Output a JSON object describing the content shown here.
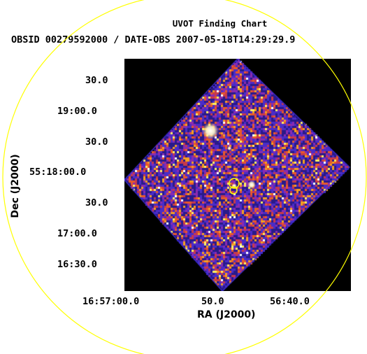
{
  "chart": {
    "title": "UVOT Finding Chart",
    "subtitle": "OBSID 00279592000 / DATE-OBS 2007-05-18T14:29:29.9",
    "xlabel": "RA (J2000)",
    "ylabel": "Dec (J2000)",
    "yticks": [
      "30.0",
      "19:00.0",
      "30.0",
      "55:18:00.0",
      "30.0",
      "17:00.0",
      "16:30.0"
    ],
    "xticks": [
      "16:57:00.0",
      "50.0",
      "56:40.0"
    ]
  },
  "colors": {
    "field_circle": "#ffff00",
    "source_markers": "#ffff00",
    "background": "#000000",
    "image_colormap": [
      "#2a1a8a",
      "#4b2cc8",
      "#8a2bb0",
      "#c83a4a",
      "#e85a2a",
      "#f5a020",
      "#fff060",
      "#ffffff"
    ]
  }
}
